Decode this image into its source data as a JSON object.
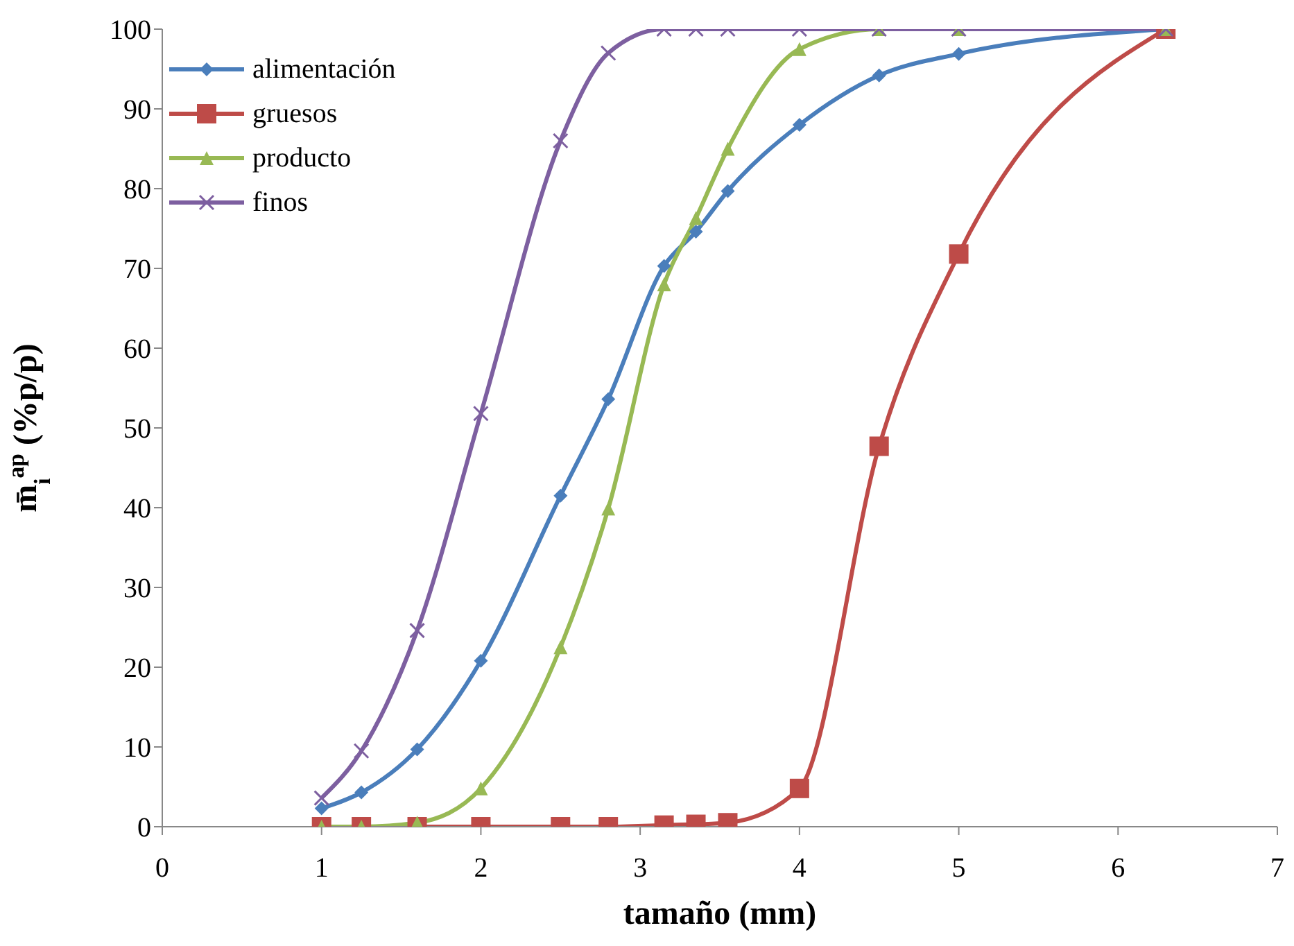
{
  "chart_data": {
    "type": "line",
    "xlabel": "tamaño (mm)",
    "ylabel": "m̄$_{i}$$^{ap}$ (%p/p)",
    "x": [
      1,
      1.25,
      1.6,
      2,
      2.5,
      2.8,
      3.15,
      3.35,
      3.55,
      4,
      4.5,
      5,
      6.3
    ],
    "series": [
      {
        "name": "alimentación",
        "color": "#4a7ebb",
        "marker": "diamond",
        "values": [
          2.3,
          4.3,
          9.7,
          20.8,
          41.5,
          53.6,
          70.3,
          74.6,
          79.7,
          88,
          94.2,
          96.9,
          100
        ]
      },
      {
        "name": "gruesos",
        "color": "#be4b48",
        "marker": "square",
        "values": [
          0,
          0,
          0,
          0,
          0,
          0,
          0.2,
          0.3,
          0.5,
          4.8,
          47.7,
          71.8,
          100
        ]
      },
      {
        "name": "producto",
        "color": "#98b954",
        "marker": "triangle",
        "values": [
          0,
          0,
          0.5,
          4.8,
          22.5,
          39.9,
          68,
          76.3,
          85,
          97.5,
          100,
          100,
          100
        ]
      },
      {
        "name": "finos",
        "color": "#7d5fa0",
        "marker": "cross",
        "values": [
          3.6,
          9.5,
          24.6,
          51.8,
          86,
          97,
          100,
          100,
          100,
          100,
          100,
          100,
          100
        ]
      }
    ],
    "xlim": [
      0,
      7
    ],
    "xticks": [
      0,
      1,
      2,
      3,
      4,
      5,
      6,
      7
    ],
    "ylim": [
      0,
      100
    ],
    "yticks": [
      0,
      10,
      20,
      30,
      40,
      50,
      60,
      70,
      80,
      90,
      100
    ],
    "grid": false,
    "legend": "top left"
  }
}
